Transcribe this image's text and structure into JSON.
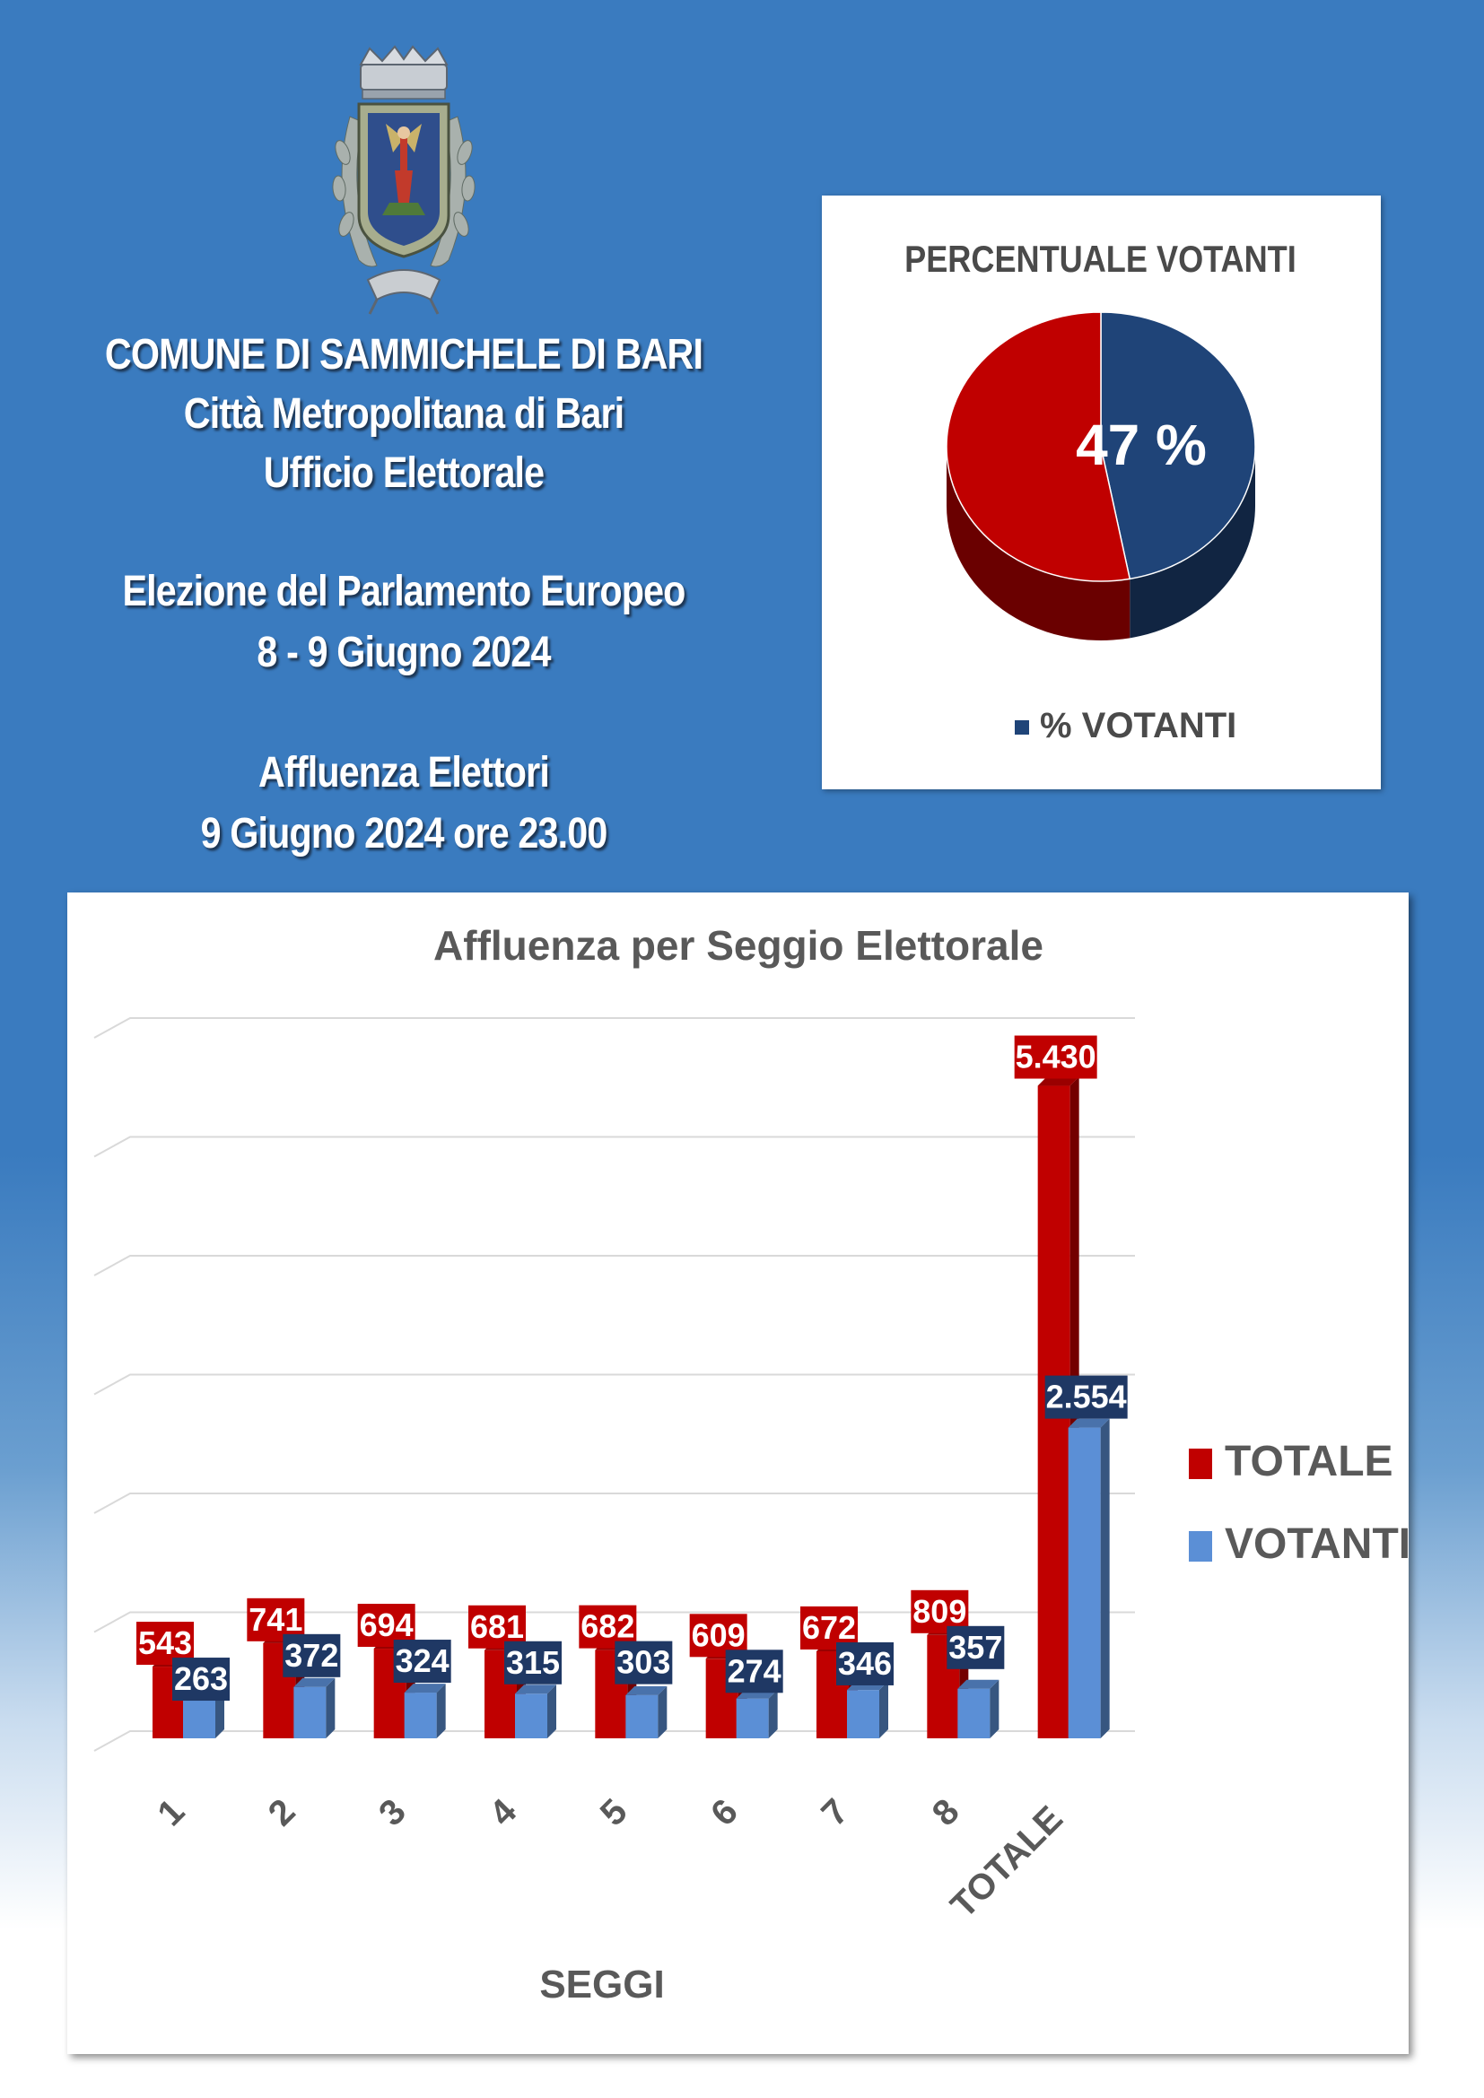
{
  "header": {
    "line1": "COMUNE DI SAMMICHELE DI BARI",
    "line2": "Città Metropolitana di Bari",
    "line3": "Ufficio Elettorale",
    "line4": "Elezione del Parlamento Europeo",
    "line5": "8 - 9 Giugno 2024",
    "line6": "Affluenza Elettori",
    "line7": "9 Giugno 2024 ore 23.00"
  },
  "chart_data": [
    {
      "type": "pie",
      "title": "PERCENTUALE VOTANTI",
      "label": "47 %",
      "slices": [
        {
          "name": "% VOTANTI",
          "value": 47,
          "color": "#1f4478"
        },
        {
          "name": "",
          "value": 53,
          "color": "#c00000"
        }
      ],
      "legend": {
        "text": "% VOTANTI",
        "position": "bottom"
      }
    },
    {
      "type": "bar",
      "title": "Affluenza per Seggio Elettorale",
      "xlabel": "SEGGI",
      "ylabel": "",
      "categories": [
        "1",
        "2",
        "3",
        "4",
        "5",
        "6",
        "7",
        "8",
        "TOTALE"
      ],
      "series": [
        {
          "name": "TOTALE",
          "values": [
            543,
            741,
            694,
            681,
            682,
            609,
            672,
            809,
            5430
          ],
          "labels": [
            "543",
            "741",
            "694",
            "681",
            "682",
            "609",
            "672",
            "809",
            "5.430"
          ],
          "color": "#c00000"
        },
        {
          "name": "VOTANTI",
          "values": [
            263,
            372,
            324,
            315,
            303,
            274,
            346,
            357,
            2554
          ],
          "labels": [
            "263",
            "372",
            "324",
            "315",
            "303",
            "274",
            "346",
            "357",
            "2.554"
          ],
          "color": "#5b8fd6"
        }
      ],
      "ylim": [
        0,
        6000
      ],
      "grid": true,
      "legend": "right"
    }
  ]
}
